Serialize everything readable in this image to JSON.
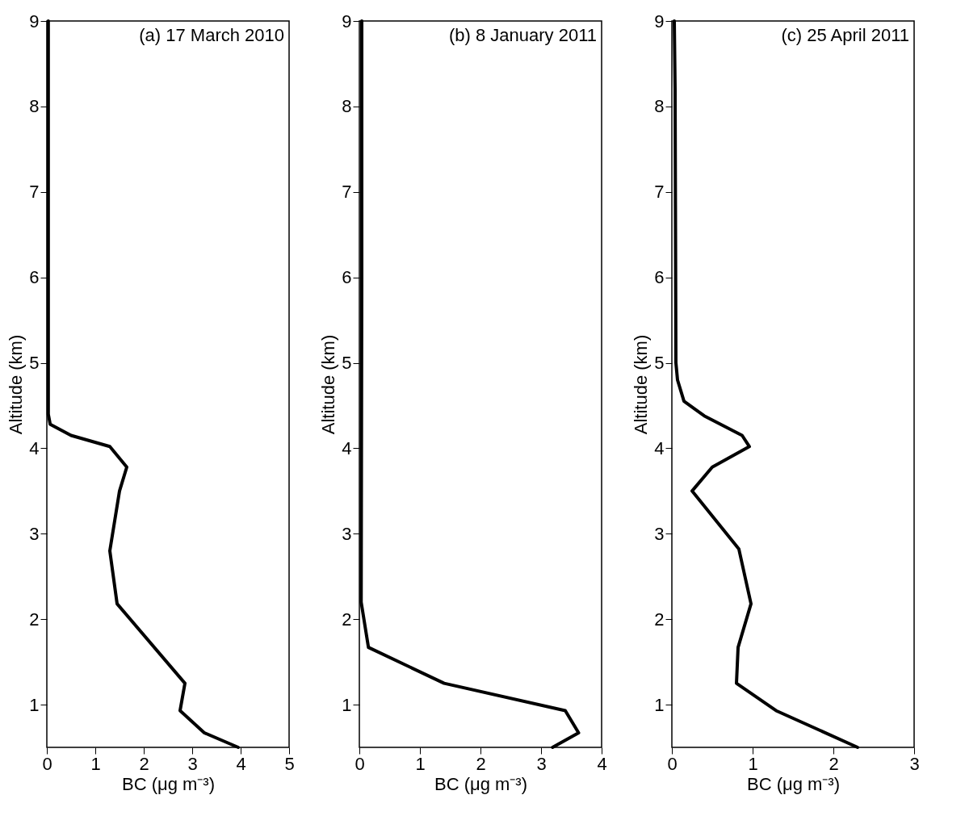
{
  "chart_data": [
    {
      "type": "line",
      "title": "(a) 17 March 2010",
      "xlabel": "BC (μg m⁻³)",
      "ylabel": "Altitude (km)",
      "xlim": [
        0,
        5
      ],
      "xticks": [
        0,
        1,
        2,
        3,
        4,
        5
      ],
      "ylim": [
        0.5,
        9
      ],
      "yticks": [
        1,
        2,
        3,
        4,
        5,
        6,
        7,
        8,
        9
      ],
      "grid": false,
      "line_style": "solid",
      "marker": "none",
      "series": [
        {
          "color": "#000000",
          "x": [
            0.03,
            0.03,
            0.07,
            0.5,
            1.3,
            1.65,
            1.5,
            1.3,
            1.45,
            2.85,
            2.75,
            3.25,
            3.95
          ],
          "values": [
            9,
            4.4,
            4.28,
            4.15,
            4.02,
            3.78,
            3.5,
            2.8,
            2.18,
            1.25,
            0.93,
            0.67,
            0.5
          ]
        }
      ]
    },
    {
      "type": "line",
      "title": "(b) 8 January 2011",
      "xlabel": "BC (μg m⁻³)",
      "ylabel": "Altitude (km)",
      "xlim": [
        0,
        4
      ],
      "xticks": [
        0,
        1,
        2,
        3,
        4
      ],
      "ylim": [
        0.5,
        9
      ],
      "yticks": [
        1,
        2,
        3,
        4,
        5,
        6,
        7,
        8,
        9
      ],
      "grid": false,
      "line_style": "solid",
      "marker": "none",
      "series": [
        {
          "color": "#000000",
          "x": [
            0.04,
            0.04,
            0.03,
            0.15,
            1.4,
            3.4,
            3.62,
            3.19
          ],
          "values": [
            9,
            6,
            2.2,
            1.67,
            1.25,
            0.93,
            0.67,
            0.5
          ]
        }
      ]
    },
    {
      "type": "line",
      "title": "(c) 25 April 2011",
      "xlabel": "BC (μg m⁻³)",
      "ylabel": "Altitude (km)",
      "xlim": [
        0,
        3
      ],
      "xticks": [
        0,
        1,
        2,
        3
      ],
      "ylim": [
        0.5,
        9
      ],
      "yticks": [
        1,
        2,
        3,
        4,
        5,
        6,
        7,
        8,
        9
      ],
      "grid": false,
      "line_style": "solid",
      "marker": "none",
      "series": [
        {
          "color": "#000000",
          "x": [
            0.03,
            0.04,
            0.05,
            0.07,
            0.15,
            0.4,
            0.87,
            0.96,
            0.5,
            0.25,
            0.83,
            0.98,
            0.82,
            0.8,
            1.29,
            2.3
          ],
          "values": [
            9,
            8.2,
            5,
            4.8,
            4.55,
            4.38,
            4.15,
            4.02,
            3.78,
            3.5,
            2.82,
            2.18,
            1.67,
            1.25,
            0.93,
            0.5
          ]
        }
      ]
    }
  ]
}
